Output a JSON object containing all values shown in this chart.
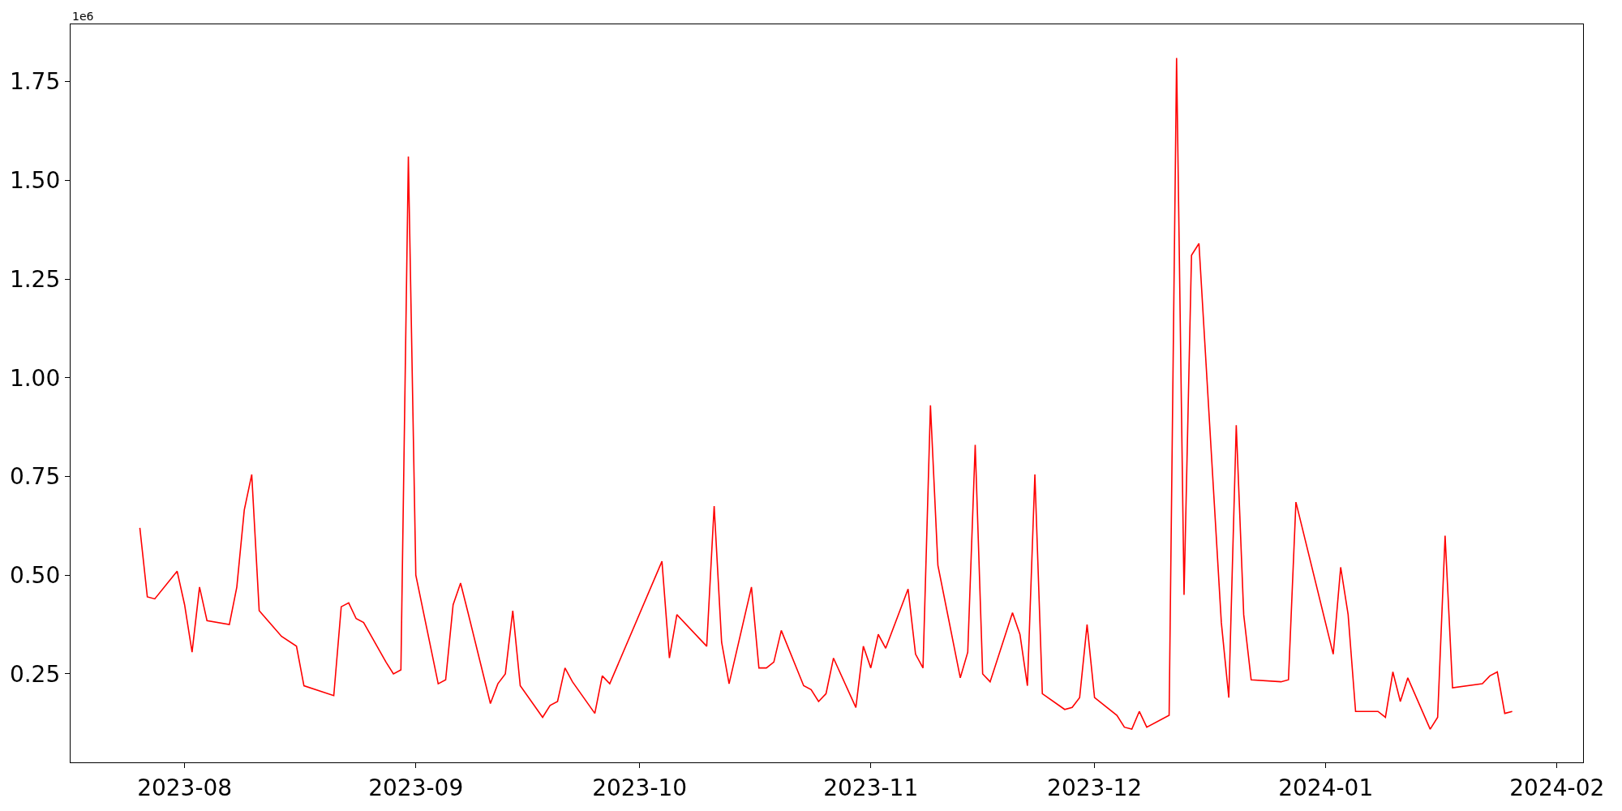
{
  "chart_data": {
    "type": "line",
    "x": [
      "2023-07-26",
      "2023-07-27",
      "2023-07-28",
      "2023-07-31",
      "2023-08-01",
      "2023-08-02",
      "2023-08-03",
      "2023-08-04",
      "2023-08-07",
      "2023-08-08",
      "2023-08-09",
      "2023-08-10",
      "2023-08-11",
      "2023-08-14",
      "2023-08-16",
      "2023-08-17",
      "2023-08-21",
      "2023-08-22",
      "2023-08-23",
      "2023-08-24",
      "2023-08-25",
      "2023-08-28",
      "2023-08-29",
      "2023-08-30",
      "2023-08-31",
      "2023-09-01",
      "2023-09-04",
      "2023-09-05",
      "2023-09-06",
      "2023-09-07",
      "2023-09-08",
      "2023-09-11",
      "2023-09-12",
      "2023-09-13",
      "2023-09-14",
      "2023-09-15",
      "2023-09-18",
      "2023-09-19",
      "2023-09-20",
      "2023-09-21",
      "2023-09-22",
      "2023-09-25",
      "2023-09-26",
      "2023-09-27",
      "2023-10-04",
      "2023-10-05",
      "2023-10-06",
      "2023-10-10",
      "2023-10-11",
      "2023-10-12",
      "2023-10-13",
      "2023-10-16",
      "2023-10-17",
      "2023-10-18",
      "2023-10-19",
      "2023-10-20",
      "2023-10-23",
      "2023-10-24",
      "2023-10-25",
      "2023-10-26",
      "2023-10-27",
      "2023-10-30",
      "2023-10-31",
      "2023-11-01",
      "2023-11-02",
      "2023-11-03",
      "2023-11-06",
      "2023-11-07",
      "2023-11-08",
      "2023-11-09",
      "2023-11-10",
      "2023-11-13",
      "2023-11-14",
      "2023-11-15",
      "2023-11-16",
      "2023-11-17",
      "2023-11-20",
      "2023-11-21",
      "2023-11-22",
      "2023-11-23",
      "2023-11-24",
      "2023-11-27",
      "2023-11-28",
      "2023-11-29",
      "2023-11-30",
      "2023-12-01",
      "2023-12-04",
      "2023-12-05",
      "2023-12-06",
      "2023-12-07",
      "2023-12-08",
      "2023-12-11",
      "2023-12-12",
      "2023-12-13",
      "2023-12-14",
      "2023-12-15",
      "2023-12-18",
      "2023-12-19",
      "2023-12-20",
      "2023-12-21",
      "2023-12-22",
      "2023-12-26",
      "2023-12-27",
      "2023-12-28",
      "2024-01-02",
      "2024-01-03",
      "2024-01-04",
      "2024-01-05",
      "2024-01-08",
      "2024-01-09",
      "2024-01-10",
      "2024-01-11",
      "2024-01-12",
      "2024-01-15",
      "2024-01-16",
      "2024-01-17",
      "2024-01-18",
      "2024-01-22",
      "2024-01-23",
      "2024-01-24",
      "2024-01-25",
      "2024-01-26"
    ],
    "series": [
      {
        "color": "#ff0000",
        "values": [
          0.62,
          0.445,
          0.44,
          0.51,
          0.425,
          0.305,
          0.47,
          0.385,
          0.375,
          0.47,
          0.665,
          0.755,
          0.41,
          0.345,
          0.32,
          0.22,
          0.195,
          0.42,
          0.43,
          0.39,
          0.38,
          0.28,
          0.25,
          0.26,
          1.56,
          0.5,
          0.225,
          0.235,
          0.425,
          0.48,
          0.405,
          0.175,
          0.225,
          0.25,
          0.41,
          0.22,
          0.14,
          0.17,
          0.18,
          0.265,
          0.23,
          0.15,
          0.245,
          0.225,
          0.535,
          0.29,
          0.4,
          0.32,
          0.675,
          0.33,
          0.225,
          0.47,
          0.265,
          0.265,
          0.28,
          0.36,
          0.22,
          0.21,
          0.18,
          0.2,
          0.29,
          0.165,
          0.32,
          0.265,
          0.35,
          0.315,
          0.465,
          0.3,
          0.265,
          0.93,
          0.525,
          0.24,
          0.305,
          0.83,
          0.25,
          0.23,
          0.405,
          0.35,
          0.22,
          0.755,
          0.2,
          0.16,
          0.165,
          0.19,
          0.375,
          0.19,
          0.145,
          0.115,
          0.11,
          0.155,
          0.115,
          0.145,
          1.81,
          0.45,
          1.31,
          1.34,
          0.38,
          0.19,
          0.88,
          0.4,
          0.235,
          0.23,
          0.235,
          0.685,
          0.3,
          0.52,
          0.4,
          0.155,
          0.155,
          0.14,
          0.255,
          0.18,
          0.24,
          0.11,
          0.14,
          0.6,
          0.215,
          0.225,
          0.245,
          0.255,
          0.15,
          0.155
        ]
      }
    ],
    "xlim": [
      "2023-07-16T17:00",
      "2024-02-04T12:00"
    ],
    "xticks": [
      {
        "value": "2023-08-01",
        "label": "2023-08"
      },
      {
        "value": "2023-09-01",
        "label": "2023-09"
      },
      {
        "value": "2023-10-01",
        "label": "2023-10"
      },
      {
        "value": "2023-11-01",
        "label": "2023-11"
      },
      {
        "value": "2023-12-01",
        "label": "2023-12"
      },
      {
        "value": "2024-01-01",
        "label": "2024-01"
      },
      {
        "value": "2024-02-01",
        "label": "2024-02"
      }
    ],
    "ylim": [
      0.026,
      1.895
    ],
    "yticks": [
      {
        "value": 0.25,
        "label": "0.25"
      },
      {
        "value": 0.5,
        "label": "0.50"
      },
      {
        "value": 0.75,
        "label": "0.75"
      },
      {
        "value": 1.0,
        "label": "1.00"
      },
      {
        "value": 1.25,
        "label": "1.25"
      },
      {
        "value": 1.5,
        "label": "1.50"
      },
      {
        "value": 1.75,
        "label": "1.75"
      }
    ],
    "annotations": [
      "1e6"
    ],
    "marker": "none",
    "line_style": "solid"
  }
}
